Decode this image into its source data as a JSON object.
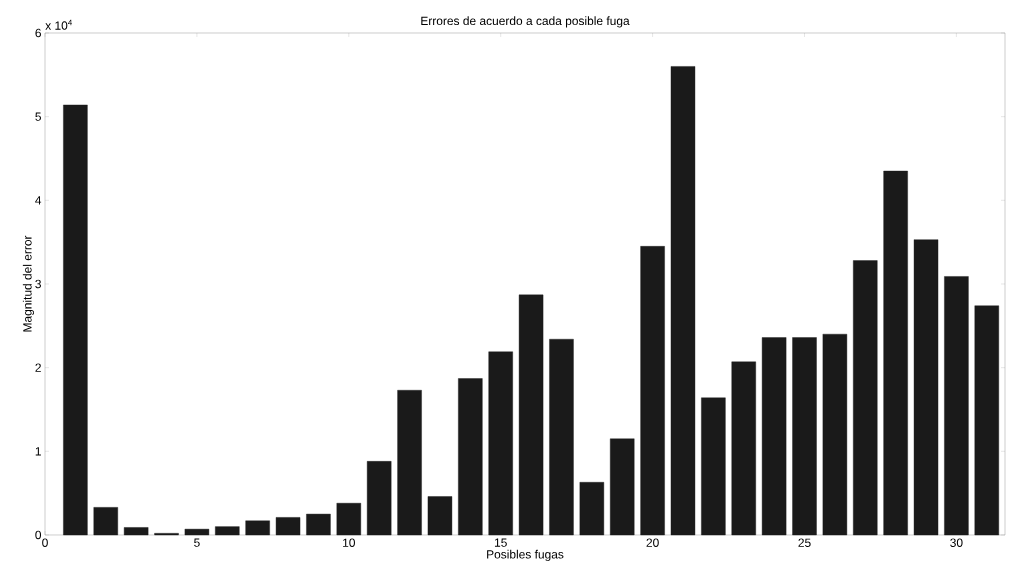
{
  "chart_data": {
    "type": "bar",
    "title": "Errores de acuerdo a cada posible fuga",
    "xlabel": "Posibles fugas",
    "ylabel": "Magnitud del error",
    "annotations": [
      "x 10$^{4}$"
    ],
    "x": [
      1,
      2,
      3,
      4,
      5,
      6,
      7,
      8,
      9,
      10,
      11,
      12,
      13,
      14,
      15,
      16,
      17,
      18,
      19,
      20,
      21,
      22,
      23,
      24,
      25,
      26,
      27,
      28,
      29,
      30,
      31
    ],
    "values": [
      5.14,
      0.33,
      0.09,
      0.02,
      0.07,
      0.1,
      0.17,
      0.21,
      0.25,
      0.38,
      0.88,
      1.73,
      0.46,
      1.87,
      2.19,
      2.87,
      2.34,
      0.63,
      1.15,
      3.45,
      5.6,
      1.64,
      2.07,
      2.36,
      2.36,
      2.4,
      3.28,
      4.35,
      3.53,
      3.09,
      2.74
    ],
    "color": "#1a1a1a",
    "xlim": [
      0,
      31.6
    ],
    "ylim": [
      0,
      6
    ],
    "xticks": [
      0,
      5,
      10,
      15,
      20,
      25,
      30
    ],
    "yticks": [
      0,
      1,
      2,
      3,
      4,
      5,
      6
    ]
  }
}
